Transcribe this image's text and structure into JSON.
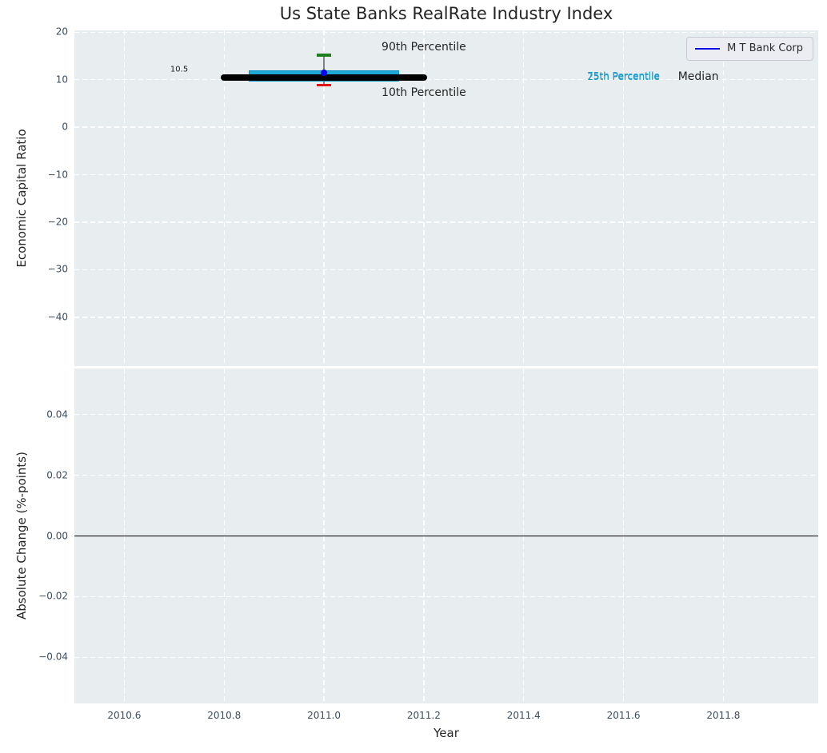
{
  "title": "Us State Banks RealRate Industry Index",
  "colors": {
    "figure_background": "#ffffff",
    "axes_background": "#e8edf0",
    "grid": "#ffffff",
    "tick_label": "#3b4d60",
    "text": "#242424",
    "box_fill": "#1fa7d6",
    "box_edge": "#0e93c6",
    "median": "#000000",
    "whisker": "#7d828a",
    "cap_90th": "#1d801d",
    "cap_10th": "#e01414",
    "marker": "#0000ee",
    "legend_line": "#0000ee",
    "percentile_text": "#1a9cd0",
    "zero_line": "#000000"
  },
  "legend": {
    "label": "M T Bank Corp"
  },
  "chart_data": [
    {
      "type": "boxplot",
      "title": "Us State Banks RealRate Industry Index",
      "ylabel": "Economic Capital Ratio",
      "xlim": [
        2010.5,
        2011.99
      ],
      "ylim": [
        -50.3,
        20.4
      ],
      "grid": true,
      "legend_position": "upper right",
      "show_xticklabels": false,
      "xticks": {
        "values": [
          2010.6,
          2010.8,
          2011.0,
          2011.2,
          2011.4,
          2011.6,
          2011.8
        ],
        "labels": [
          "2010.6",
          "2010.8",
          "2011.0",
          "2011.2",
          "2011.4",
          "2011.6",
          "2011.8"
        ]
      },
      "yticks": {
        "values": [
          20,
          10,
          0,
          -10,
          -20,
          -30,
          -40
        ],
        "labels": [
          "20",
          "10",
          "0",
          "−10",
          "−20",
          "−30",
          "−40"
        ]
      },
      "box": {
        "x": 2011.0,
        "p90": 15.2,
        "q3": 12.0,
        "median": 10.5,
        "q1": 9.6,
        "p10": 8.9,
        "iqr_x_span": [
          2010.85,
          2011.15
        ],
        "median_x_span": [
          2010.8,
          2011.2
        ],
        "cap_half_width_years": 0.015,
        "median_label": "10.5"
      },
      "series": [
        {
          "name": "M T Bank Corp",
          "points": [
            [
              2011.0,
              11.4
            ]
          ]
        }
      ],
      "annotations": [
        {
          "text": "90th Percentile",
          "x": 2011.2,
          "y": 16.8,
          "colorKey": "text",
          "size": 14
        },
        {
          "text": "10th Percentile",
          "x": 2011.2,
          "y": 7.3,
          "colorKey": "text",
          "size": 14
        },
        {
          "text": "75th Percentile",
          "x": 2011.6,
          "y": 10.82,
          "colorKey": "percentile_text",
          "size": 12
        },
        {
          "text": "25th Percentile",
          "x": 2011.6,
          "y": 10.62,
          "colorKey": "percentile_text",
          "size": 12
        },
        {
          "text": "Median",
          "x": 2011.75,
          "y": 10.7,
          "colorKey": "text",
          "size": 14
        },
        {
          "text": "10.5",
          "x": 2010.71,
          "y": 12.1,
          "colorKey": "text",
          "size": 10
        }
      ]
    },
    {
      "type": "line",
      "ylabel": "Absolute Change (%-points)",
      "xlabel": "Year",
      "xlim": [
        2010.5,
        2011.99
      ],
      "ylim": [
        -0.0552,
        0.0552
      ],
      "grid": true,
      "show_xticklabels": true,
      "xticks": {
        "values": [
          2010.6,
          2010.8,
          2011.0,
          2011.2,
          2011.4,
          2011.6,
          2011.8
        ],
        "labels": [
          "2010.6",
          "2010.8",
          "2011.0",
          "2011.2",
          "2011.4",
          "2011.6",
          "2011.8"
        ]
      },
      "yticks": {
        "values": [
          0.04,
          0.02,
          0.0,
          -0.02,
          -0.04
        ],
        "labels": [
          "0.04",
          "0.02",
          "0.00",
          "−0.02",
          "−0.04"
        ]
      },
      "zero_line": {
        "y": 0.0
      },
      "series": []
    }
  ]
}
